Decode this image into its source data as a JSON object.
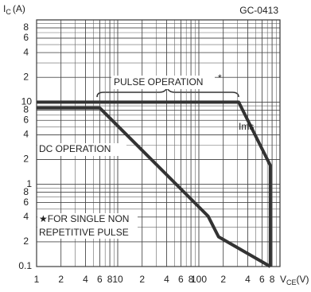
{
  "chart_data": {
    "type": "line",
    "log_x": true,
    "log_y": true,
    "grid": true,
    "code": "GC-0413",
    "y_label": {
      "main": "I",
      "sub": "C",
      "unit": "(A)"
    },
    "x_label": {
      "main": "V",
      "sub": "CE",
      "unit": "(V)"
    },
    "xlim": [
      1,
      1000
    ],
    "ylim": [
      0.1,
      100
    ],
    "xticks": [
      1,
      2,
      4,
      6,
      8,
      10,
      {
        "value": 20,
        "label": "2"
      },
      {
        "value": 40,
        "label": "4"
      },
      {
        "value": 60,
        "label": "6"
      },
      {
        "value": 80,
        "label": "8"
      },
      100,
      {
        "value": 200,
        "label": "2"
      },
      {
        "value": 400,
        "label": "4"
      },
      {
        "value": 600,
        "label": "6"
      },
      {
        "value": 800,
        "label": "8"
      }
    ],
    "yticks": [
      0.1,
      {
        "value": 0.2,
        "label": "2"
      },
      {
        "value": 0.4,
        "label": "4"
      },
      {
        "value": 0.6,
        "label": "6"
      },
      {
        "value": 0.8,
        "label": "8"
      },
      1,
      2,
      4,
      6,
      8,
      10,
      {
        "value": 20,
        "label": "2"
      },
      {
        "value": 40,
        "label": "4"
      },
      {
        "value": 60,
        "label": "6"
      },
      {
        "value": 80,
        "label": "8"
      }
    ],
    "series": [
      {
        "name": "Ims",
        "color": "#333333",
        "x": [
          1,
          310,
          760,
          760
        ],
        "values": [
          10,
          10,
          1.7,
          0.1
        ]
      },
      {
        "color": "#333333",
        "x": [
          1,
          6,
          130,
          175,
          760
        ],
        "values": [
          8.5,
          8.5,
          0.41,
          0.23,
          0.1
        ]
      }
    ],
    "annotations": [
      "PULSE OPERATION",
      "*",
      "DC OPERATION",
      "★FOR SINGLE NON",
      "REPETITIVE PULSE"
    ]
  }
}
